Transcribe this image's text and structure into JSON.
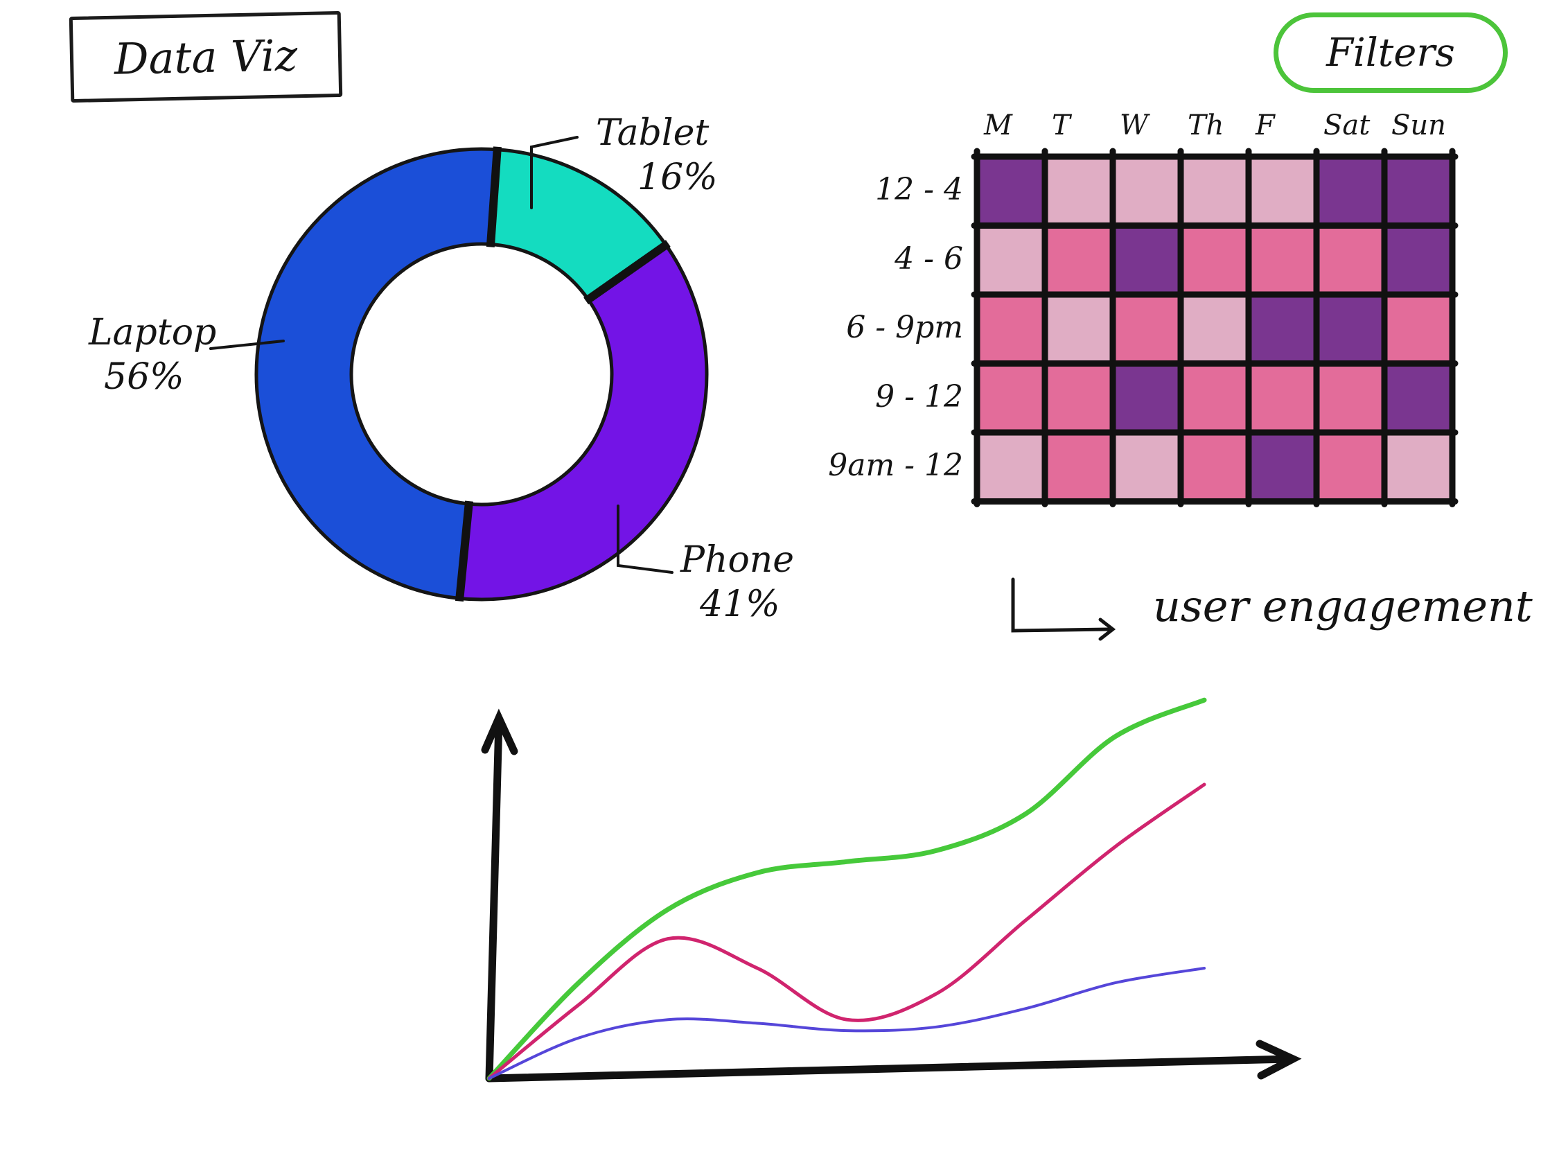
{
  "page": {
    "title": "Data Viz"
  },
  "toolbar": {
    "filters_label": "Filters"
  },
  "colors": {
    "laptop": "#1b4fd8",
    "phone": "#7314e6",
    "tablet": "#14dcc0",
    "green_line": "#46c93a",
    "pink_line": "#d0246e",
    "blue_line": "#5546d9",
    "filters_border": "#4cc43a",
    "heat_low": "#e0adc4",
    "heat_mid": "#e36c9a",
    "heat_high": "#7a3690"
  },
  "chart_data": [
    {
      "type": "pie",
      "title": "",
      "slices": [
        {
          "name": "Laptop",
          "label": "56%",
          "value": 56
        },
        {
          "name": "Phone",
          "label": "41%",
          "value": 41
        },
        {
          "name": "Tablet",
          "label": "16%",
          "value": 16
        }
      ]
    },
    {
      "type": "heatmap",
      "title": "user engagement",
      "x_categories": [
        "M",
        "T",
        "W",
        "Th",
        "F",
        "Sat",
        "Sun"
      ],
      "y_categories": [
        "12 - 4",
        "4 - 6",
        "6 - 9pm",
        "9 - 12",
        "9am - 12"
      ],
      "values": [
        [
          3,
          1,
          1,
          1,
          1,
          3,
          3
        ],
        [
          1,
          2,
          3,
          2,
          2,
          2,
          3
        ],
        [
          2,
          1,
          2,
          1,
          3,
          3,
          2
        ],
        [
          2,
          2,
          3,
          2,
          2,
          2,
          3
        ],
        [
          1,
          2,
          1,
          2,
          3,
          2,
          1
        ]
      ]
    },
    {
      "type": "line",
      "title": "",
      "xlabel": "",
      "ylabel": "",
      "x": [
        0,
        1,
        2,
        3,
        4,
        5,
        6,
        7,
        8
      ],
      "xlim": [
        0,
        10
      ],
      "ylim": [
        0,
        10
      ],
      "grid": false,
      "series": [
        {
          "color": "green",
          "values": [
            0,
            2.6,
            4.6,
            5.6,
            5.9,
            6.2,
            7.2,
            9.3,
            10.3
          ]
        },
        {
          "color": "pink",
          "values": [
            0,
            2.0,
            3.8,
            3.0,
            1.6,
            2.3,
            4.3,
            6.3,
            8.0
          ]
        },
        {
          "color": "blue",
          "values": [
            0,
            1.1,
            1.6,
            1.5,
            1.3,
            1.4,
            1.9,
            2.6,
            3.0
          ]
        }
      ]
    }
  ]
}
